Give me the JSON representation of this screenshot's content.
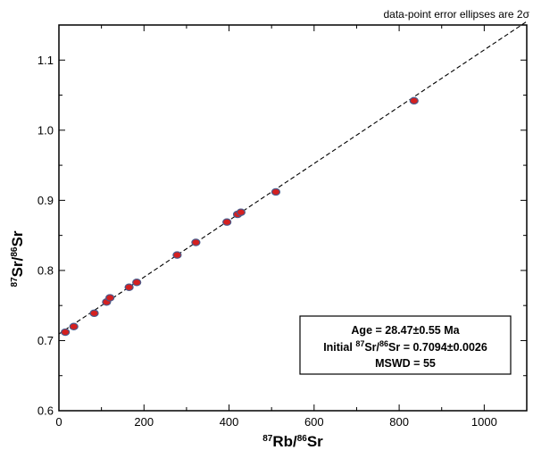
{
  "chart_data": {
    "type": "scatter",
    "title": "",
    "note": "data-point error ellipses are 2σ",
    "xlabel": {
      "sup1": "87",
      "base1": "Rb/",
      "sup2": "86",
      "base2": "Sr"
    },
    "ylabel": {
      "sup1": "87",
      "base1": "Sr/",
      "sup2": "86",
      "base2": "Sr"
    },
    "xlim": [
      0,
      1100
    ],
    "ylim": [
      0.6,
      1.15
    ],
    "x_ticks": [
      0,
      200,
      400,
      600,
      800,
      1000
    ],
    "y_ticks": [
      0.6,
      0.7,
      0.8,
      0.9,
      1.0,
      1.1
    ],
    "x_tick_labels": [
      "0",
      "200",
      "400",
      "600",
      "800",
      "1000"
    ],
    "y_tick_labels": [
      "0.6",
      "0.7",
      "0.8",
      "0.9",
      "1.0",
      "1.1"
    ],
    "grid": false,
    "marker_color": "#d42020",
    "ellipse_edge_color": "#4a5a8a",
    "fit_line": {
      "style": "dashed",
      "x": [
        0,
        1100
      ],
      "y": [
        0.7094,
        1.155
      ]
    },
    "points": [
      {
        "x": 15,
        "y": 0.712
      },
      {
        "x": 35,
        "y": 0.72
      },
      {
        "x": 83,
        "y": 0.739
      },
      {
        "x": 112,
        "y": 0.755
      },
      {
        "x": 120,
        "y": 0.761
      },
      {
        "x": 165,
        "y": 0.776
      },
      {
        "x": 183,
        "y": 0.783
      },
      {
        "x": 278,
        "y": 0.822
      },
      {
        "x": 322,
        "y": 0.84
      },
      {
        "x": 395,
        "y": 0.869
      },
      {
        "x": 420,
        "y": 0.88
      },
      {
        "x": 428,
        "y": 0.883
      },
      {
        "x": 510,
        "y": 0.912
      },
      {
        "x": 835,
        "y": 1.042
      }
    ],
    "results": {
      "age": "Age = 28.47±0.55 Ma",
      "initial_prefix": "Initial ",
      "initial_sup1": "87",
      "initial_mid": "Sr/",
      "initial_sup2": "86",
      "initial_suffix": "Sr = 0.7094±0.0026",
      "mswd": "MSWD = 55"
    }
  }
}
